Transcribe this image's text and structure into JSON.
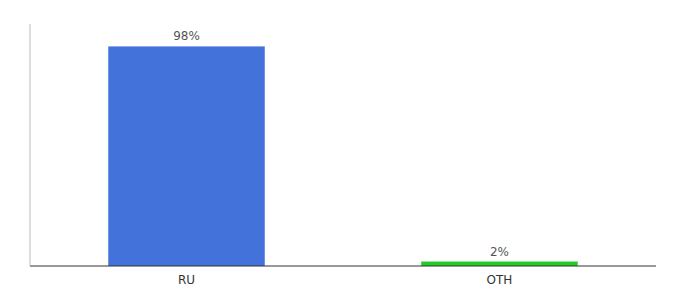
{
  "chart_data": {
    "type": "bar",
    "categories": [
      "RU",
      "OTH"
    ],
    "values": [
      98,
      2
    ],
    "value_labels": [
      "98%",
      "2%"
    ],
    "colors": [
      "#4472db",
      "#22cc22"
    ],
    "ylim": [
      0,
      108
    ],
    "data_labels": true,
    "tick_labels": "x",
    "grid": false
  }
}
